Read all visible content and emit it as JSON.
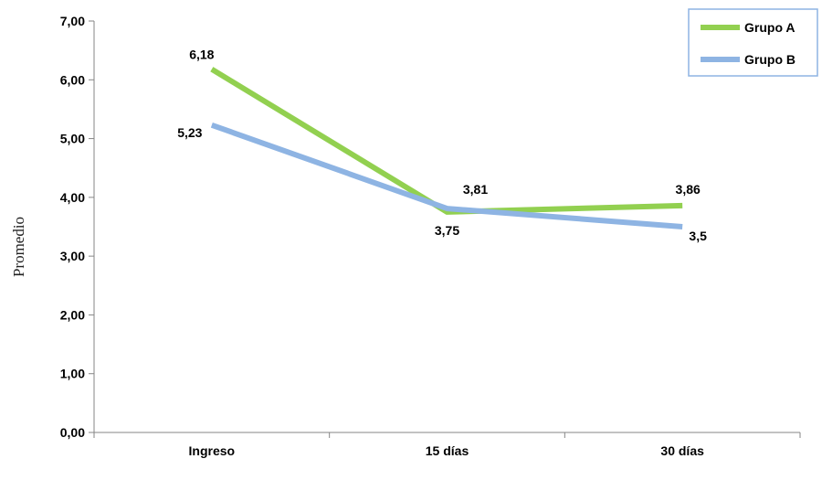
{
  "chart_data": {
    "type": "line",
    "title": "",
    "xlabel": "",
    "ylabel": "Promedio",
    "categories": [
      "Ingreso",
      "15 días",
      "30 días"
    ],
    "ylim": [
      0,
      7
    ],
    "yticks": [
      "0,00",
      "1,00",
      "2,00",
      "3,00",
      "4,00",
      "5,00",
      "6,00",
      "7,00"
    ],
    "grid": false,
    "legend_position": "top-right",
    "series": [
      {
        "name": "Grupo A",
        "color": "#92D050",
        "values": [
          6.18,
          3.75,
          3.86
        ],
        "labels": [
          "6,18",
          "3,75",
          "3,86"
        ]
      },
      {
        "name": "Grupo B",
        "color": "#8EB4E3",
        "values": [
          5.23,
          3.81,
          3.5
        ],
        "labels": [
          "5,23",
          "3,81",
          "3,5"
        ]
      }
    ]
  }
}
